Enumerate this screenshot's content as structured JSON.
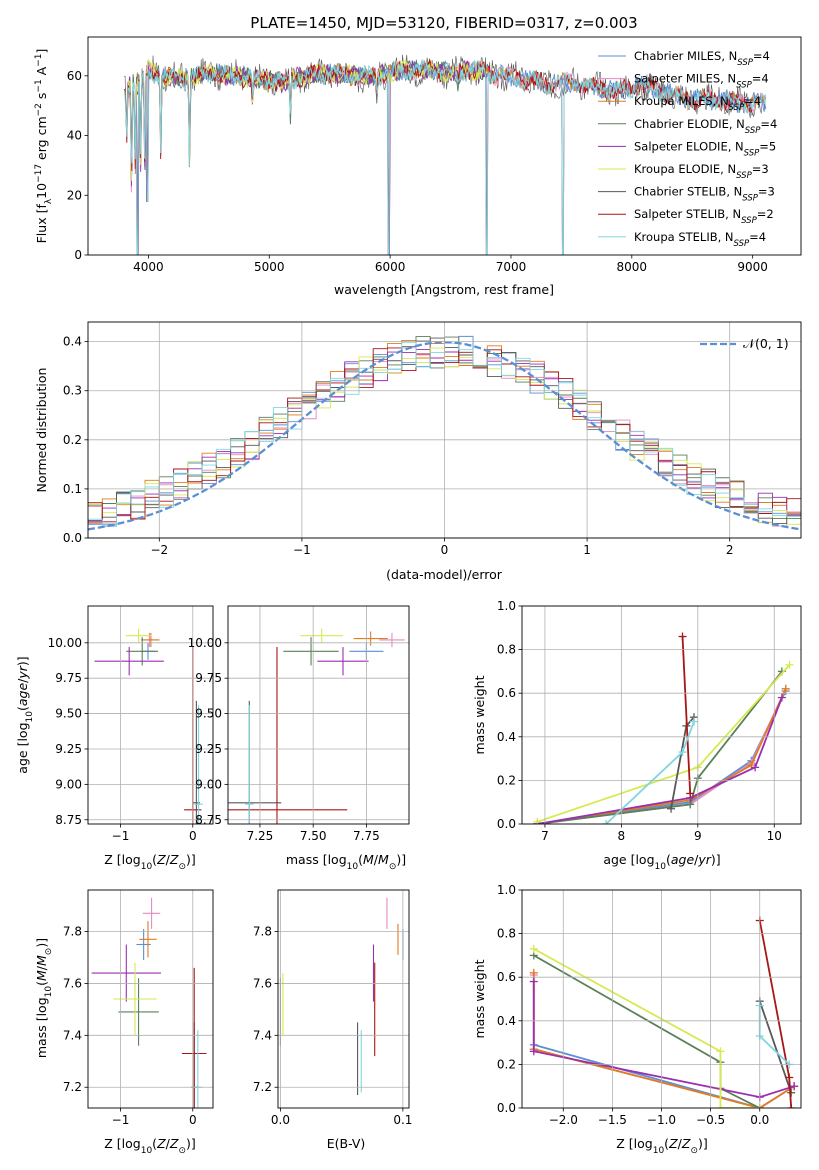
{
  "colors": {
    "cMILES": "#5b8fd4",
    "sMILES": "#e68ac0",
    "kMILES": "#e07b20",
    "cELODIE": "#5a7f5a",
    "sELODIE": "#9a2fb0",
    "kELODIE": "#d6ea50",
    "cSTELIB": "#585858",
    "sSTELIB": "#aa1515",
    "kSTELIB": "#7fd6e0",
    "gauss": "#5b8fd4"
  },
  "chart_data": [
    {
      "id": "spectrum",
      "type": "line",
      "title": "PLATE=1450, MJD=53120, FIBERID=0317, z=0.003",
      "xlabel": "wavelength [Angstrom, rest frame]",
      "ylabel": "Flux [f_λ 10^-17 erg cm^-2 s^-1 A^-1]",
      "xlim": [
        3500,
        9400
      ],
      "ylim": [
        0,
        73
      ],
      "xticks": [
        "4000",
        "5000",
        "6000",
        "7000",
        "8000",
        "9000"
      ],
      "yticks": [
        "0",
        "20",
        "40",
        "60"
      ],
      "legend_position": "top-right",
      "legend": [
        {
          "key": "cMILES",
          "label": "Chabrier MILES, N_SSP=4"
        },
        {
          "key": "sMILES",
          "label": "Salpeter MILES, N_SSP=4"
        },
        {
          "key": "kMILES",
          "label": "Kroupa MILES, N_SSP=4"
        },
        {
          "key": "cELODIE",
          "label": "Chabrier ELODIE, N_SSP=4"
        },
        {
          "key": "sELODIE",
          "label": "Salpeter ELODIE, N_SSP=5"
        },
        {
          "key": "kELODIE",
          "label": "Kroupa ELODIE, N_SSP=3"
        },
        {
          "key": "cSTELIB",
          "label": "Chabrier STELIB, N_SSP=3"
        },
        {
          "key": "sSTELIB",
          "label": "Salpeter STELIB, N_SSP=2"
        },
        {
          "key": "kSTELIB",
          "label": "Kroupa STELIB, N_SSP=4"
        }
      ],
      "continuum": [
        [
          3800,
          55
        ],
        [
          3900,
          58
        ],
        [
          4000,
          62
        ],
        [
          4100,
          60
        ],
        [
          4300,
          59
        ],
        [
          4500,
          61
        ],
        [
          4700,
          60
        ],
        [
          4900,
          59
        ],
        [
          5100,
          58
        ],
        [
          5300,
          60
        ],
        [
          5500,
          61
        ],
        [
          5700,
          60
        ],
        [
          5900,
          60
        ],
        [
          6100,
          62
        ],
        [
          6300,
          62
        ],
        [
          6500,
          61
        ],
        [
          6700,
          62
        ],
        [
          6900,
          60
        ],
        [
          7100,
          59
        ],
        [
          7300,
          57
        ],
        [
          7500,
          58
        ],
        [
          7700,
          56
        ],
        [
          7900,
          55
        ],
        [
          8100,
          57
        ],
        [
          8300,
          54
        ],
        [
          8500,
          52
        ],
        [
          8700,
          52
        ],
        [
          8900,
          51
        ],
        [
          9100,
          51
        ]
      ],
      "lines": [
        [
          3820,
          44
        ],
        [
          3860,
          26
        ],
        [
          3890,
          33
        ],
        [
          3935,
          30
        ],
        [
          3970,
          28
        ],
        [
          4102,
          32
        ],
        [
          4340,
          32
        ],
        [
          4861,
          52
        ],
        [
          5175,
          48
        ],
        [
          5890,
          53
        ],
        [
          6563,
          56
        ]
      ],
      "spikes": [
        [
          3910,
          0
        ],
        [
          3990,
          18
        ],
        [
          5990,
          0
        ],
        [
          6800,
          0
        ],
        [
          7430,
          0
        ]
      ]
    },
    {
      "id": "residuals",
      "type": "line",
      "xlabel": "(data-model)/error",
      "ylabel": "Normed distribution",
      "xlim": [
        -2.5,
        2.5
      ],
      "ylim": [
        0,
        0.44
      ],
      "xticks": [
        "−2",
        "−1",
        "0",
        "1",
        "2"
      ],
      "yticks": [
        "0.0",
        "0.1",
        "0.2",
        "0.3",
        "0.4"
      ],
      "legend": [
        {
          "key": "gauss",
          "label": "𝒩(0, 1)"
        }
      ],
      "legend_position": "top-right",
      "bin_width": 0.1,
      "reference_curve": "standard normal pdf, dashed",
      "series_note": "nine step histograms, one per SSP model, colors as in spectrum legend"
    },
    {
      "id": "age_vs_Z",
      "type": "scatter",
      "xlabel": "Z [log10(Z/Z⊙)]",
      "ylabel": "age [log10(age/yr)]",
      "xlim": [
        -1.45,
        0.28
      ],
      "ylim": [
        8.72,
        10.26
      ],
      "xticks": [
        "−1",
        "0"
      ],
      "yticks": [
        "8.75",
        "9.00",
        "9.25",
        "9.50",
        "9.75",
        "10.00"
      ],
      "points": [
        {
          "key": "cMILES",
          "x": -0.62,
          "y": 9.94,
          "xerr": 0.1,
          "yerr": 0.06
        },
        {
          "key": "sMILES",
          "x": -0.6,
          "y": 10.02,
          "xerr": 0.12,
          "yerr": 0.05
        },
        {
          "key": "kMILES",
          "x": -0.58,
          "y": 10.02,
          "xerr": 0.12,
          "yerr": 0.05
        },
        {
          "key": "cELODIE",
          "x": -0.7,
          "y": 9.94,
          "xerr": 0.22,
          "yerr": 0.1
        },
        {
          "key": "sELODIE",
          "x": -0.88,
          "y": 9.87,
          "xerr": 0.48,
          "yerr": 0.1
        },
        {
          "key": "kELODIE",
          "x": -0.75,
          "y": 10.05,
          "xerr": 0.18,
          "yerr": 0.05
        },
        {
          "key": "cSTELIB",
          "x": 0.05,
          "y": 8.87,
          "xerr": 0.05,
          "yerr": 0.72
        },
        {
          "key": "sSTELIB",
          "x": 0.0,
          "y": 8.82,
          "xerr": 0.12,
          "yerr": 1.15
        },
        {
          "key": "kSTELIB",
          "x": 0.08,
          "y": 8.86,
          "xerr": 0.06,
          "yerr": 0.7
        }
      ]
    },
    {
      "id": "age_vs_mass",
      "type": "scatter",
      "xlabel": "mass [log10(M/M⊙)]",
      "ylabel": "",
      "xlim": [
        7.1,
        7.95
      ],
      "ylim": [
        8.72,
        10.26
      ],
      "xticks": [
        "7.25",
        "7.50",
        "7.75"
      ],
      "yticks": [
        "8.75",
        "9.00",
        "9.25",
        "9.50",
        "9.75",
        "10.00"
      ],
      "points": [
        {
          "key": "cMILES",
          "x": 7.75,
          "y": 9.94,
          "xerr": 0.08,
          "yerr": 0.06
        },
        {
          "key": "sMILES",
          "x": 7.87,
          "y": 10.02,
          "xerr": 0.06,
          "yerr": 0.05
        },
        {
          "key": "kMILES",
          "x": 7.77,
          "y": 10.03,
          "xerr": 0.08,
          "yerr": 0.05
        },
        {
          "key": "cELODIE",
          "x": 7.49,
          "y": 9.94,
          "xerr": 0.13,
          "yerr": 0.1
        },
        {
          "key": "sELODIE",
          "x": 7.64,
          "y": 9.87,
          "xerr": 0.12,
          "yerr": 0.1
        },
        {
          "key": "kELODIE",
          "x": 7.54,
          "y": 10.05,
          "xerr": 0.1,
          "yerr": 0.05
        },
        {
          "key": "cSTELIB",
          "x": 7.2,
          "y": 8.87,
          "xerr": 0.15,
          "yerr": 0.72
        },
        {
          "key": "sSTELIB",
          "x": 7.33,
          "y": 8.82,
          "xerr": 0.33,
          "yerr": 1.15
        },
        {
          "key": "kSTELIB",
          "x": 7.2,
          "y": 8.86,
          "xerr": 0.02,
          "yerr": 0.7
        }
      ]
    },
    {
      "id": "weight_vs_age",
      "type": "line",
      "xlabel": "age [log10(age/yr)]",
      "ylabel": "mass weight",
      "xlim": [
        6.7,
        10.35
      ],
      "ylim": [
        0,
        1.0
      ],
      "xticks": [
        "7",
        "8",
        "9",
        "10"
      ],
      "yticks": [
        "0.0",
        "0.2",
        "0.4",
        "0.6",
        "0.8",
        "1.0"
      ],
      "series": [
        {
          "key": "cMILES",
          "x": [
            6.9,
            8.9,
            9.7,
            10.15
          ],
          "y": [
            0.0,
            0.1,
            0.29,
            0.61
          ]
        },
        {
          "key": "sMILES",
          "x": [
            6.9,
            8.9,
            9.7,
            10.15
          ],
          "y": [
            0.0,
            0.09,
            0.28,
            0.62
          ]
        },
        {
          "key": "kMILES",
          "x": [
            6.9,
            8.9,
            9.7,
            10.15
          ],
          "y": [
            0.0,
            0.11,
            0.27,
            0.62
          ]
        },
        {
          "key": "cELODIE",
          "x": [
            6.9,
            8.9,
            9.0,
            10.1
          ],
          "y": [
            0.0,
            0.09,
            0.21,
            0.7
          ]
        },
        {
          "key": "sELODIE",
          "x": [
            6.9,
            8.9,
            9.75,
            10.1
          ],
          "y": [
            0.0,
            0.12,
            0.26,
            0.58
          ]
        },
        {
          "key": "kELODIE",
          "x": [
            6.9,
            9.0,
            10.2
          ],
          "y": [
            0.01,
            0.26,
            0.73
          ]
        },
        {
          "key": "cSTELIB",
          "x": [
            8.65,
            8.85,
            8.95
          ],
          "y": [
            0.07,
            0.45,
            0.49
          ]
        },
        {
          "key": "sSTELIB",
          "x": [
            8.8,
            8.9
          ],
          "y": [
            0.86,
            0.14
          ]
        },
        {
          "key": "kSTELIB",
          "x": [
            7.8,
            8.8,
            8.95
          ],
          "y": [
            0.0,
            0.33,
            0.47
          ]
        }
      ]
    },
    {
      "id": "mass_vs_Z",
      "type": "scatter",
      "xlabel": "Z [log10(Z/Z⊙)]",
      "ylabel": "mass [log10(M/M⊙)]",
      "xlim": [
        -1.45,
        0.28
      ],
      "ylim": [
        7.12,
        7.96
      ],
      "xticks": [
        "−1",
        "0"
      ],
      "yticks": [
        "7.2",
        "7.4",
        "7.6",
        "7.8"
      ],
      "points": [
        {
          "key": "cMILES",
          "x": -0.68,
          "y": 7.75,
          "xerr": 0.1,
          "yerr": 0.06
        },
        {
          "key": "sMILES",
          "x": -0.57,
          "y": 7.87,
          "xerr": 0.12,
          "yerr": 0.06
        },
        {
          "key": "kMILES",
          "x": -0.62,
          "y": 7.77,
          "xerr": 0.12,
          "yerr": 0.07
        },
        {
          "key": "cELODIE",
          "x": -0.75,
          "y": 7.49,
          "xerr": 0.28,
          "yerr": 0.13
        },
        {
          "key": "sELODIE",
          "x": -0.92,
          "y": 7.64,
          "xerr": 0.48,
          "yerr": 0.11
        },
        {
          "key": "kELODIE",
          "x": -0.8,
          "y": 7.54,
          "xerr": 0.3,
          "yerr": 0.14
        },
        {
          "key": "cSTELIB",
          "x": 0.02,
          "y": 7.2,
          "xerr": 0.04,
          "yerr": 0.25
        },
        {
          "key": "sSTELIB",
          "x": 0.02,
          "y": 7.33,
          "xerr": 0.17,
          "yerr": 0.33
        },
        {
          "key": "kSTELIB",
          "x": 0.07,
          "y": 7.2,
          "xerr": 0.06,
          "yerr": 0.22
        }
      ]
    },
    {
      "id": "mass_vs_EBV",
      "type": "scatter",
      "xlabel": "E(B-V)",
      "ylabel": "",
      "xlim": [
        -0.002,
        0.105
      ],
      "ylim": [
        7.12,
        7.96
      ],
      "xticks": [
        "0.0",
        "0.1"
      ],
      "yticks": [
        "7.2",
        "7.4",
        "7.6",
        "7.8"
      ],
      "points": [
        {
          "key": "cMILES",
          "x": 0.1,
          "y": 7.75,
          "yerr": 0.06
        },
        {
          "key": "sMILES",
          "x": 0.087,
          "y": 7.87,
          "yerr": 0.06
        },
        {
          "key": "kMILES",
          "x": 0.096,
          "y": 7.77,
          "yerr": 0.06
        },
        {
          "key": "cELODIE",
          "x": 0.0,
          "y": 7.49,
          "yerr": 0.13
        },
        {
          "key": "sELODIE",
          "x": 0.076,
          "y": 7.64,
          "yerr": 0.11
        },
        {
          "key": "kELODIE",
          "x": 0.002,
          "y": 7.52,
          "yerr": 0.12
        },
        {
          "key": "cSTELIB",
          "x": 0.063,
          "y": 7.31,
          "yerr": 0.14
        },
        {
          "key": "sSTELIB",
          "x": 0.077,
          "y": 7.5,
          "yerr": 0.18
        },
        {
          "key": "kSTELIB",
          "x": 0.066,
          "y": 7.3,
          "yerr": 0.12
        }
      ]
    },
    {
      "id": "weight_vs_Z",
      "type": "line",
      "xlabel": "Z [log10(Z/Z⊙)]",
      "ylabel": "mass weight",
      "xlim": [
        -2.42,
        0.42
      ],
      "ylim": [
        0,
        1.0
      ],
      "xticks": [
        "−2.0",
        "−1.5",
        "−1.0",
        "−0.5",
        "0.0"
      ],
      "yticks": [
        "0.0",
        "0.2",
        "0.4",
        "0.6",
        "0.8",
        "1.0"
      ],
      "series": [
        {
          "key": "cMILES",
          "x": [
            -2.3,
            0.0,
            0.35
          ],
          "y": [
            0.29,
            0.0,
            0.1
          ]
        },
        {
          "key": "sMILES",
          "x": [
            -2.3,
            -2.3,
            0.0,
            0.35
          ],
          "y": [
            0.61,
            0.27,
            0.0,
            0.1
          ]
        },
        {
          "key": "kMILES",
          "x": [
            -2.3,
            -2.3,
            0.0,
            0.35
          ],
          "y": [
            0.62,
            0.27,
            0.0,
            0.1
          ]
        },
        {
          "key": "cELODIE",
          "x": [
            -2.3,
            -0.4,
            -0.4,
            0.0
          ],
          "y": [
            0.7,
            0.21,
            0.09,
            0.0
          ]
        },
        {
          "key": "sELODIE",
          "x": [
            -2.3,
            -2.3,
            0.0,
            0.35
          ],
          "y": [
            0.58,
            0.26,
            0.05,
            0.1
          ]
        },
        {
          "key": "kELODIE",
          "x": [
            -2.3,
            -0.4,
            -0.4,
            0.0
          ],
          "y": [
            0.73,
            0.26,
            0.0,
            0.0
          ]
        },
        {
          "key": "cSTELIB",
          "x": [
            0.0,
            0.32
          ],
          "y": [
            0.49,
            0.07
          ]
        },
        {
          "key": "sSTELIB",
          "x": [
            0.0,
            0.3,
            0.32
          ],
          "y": [
            0.86,
            0.14,
            0.0
          ]
        },
        {
          "key": "kSTELIB",
          "x": [
            0.0,
            0.0,
            0.3
          ],
          "y": [
            0.47,
            0.33,
            0.2
          ]
        }
      ]
    }
  ]
}
